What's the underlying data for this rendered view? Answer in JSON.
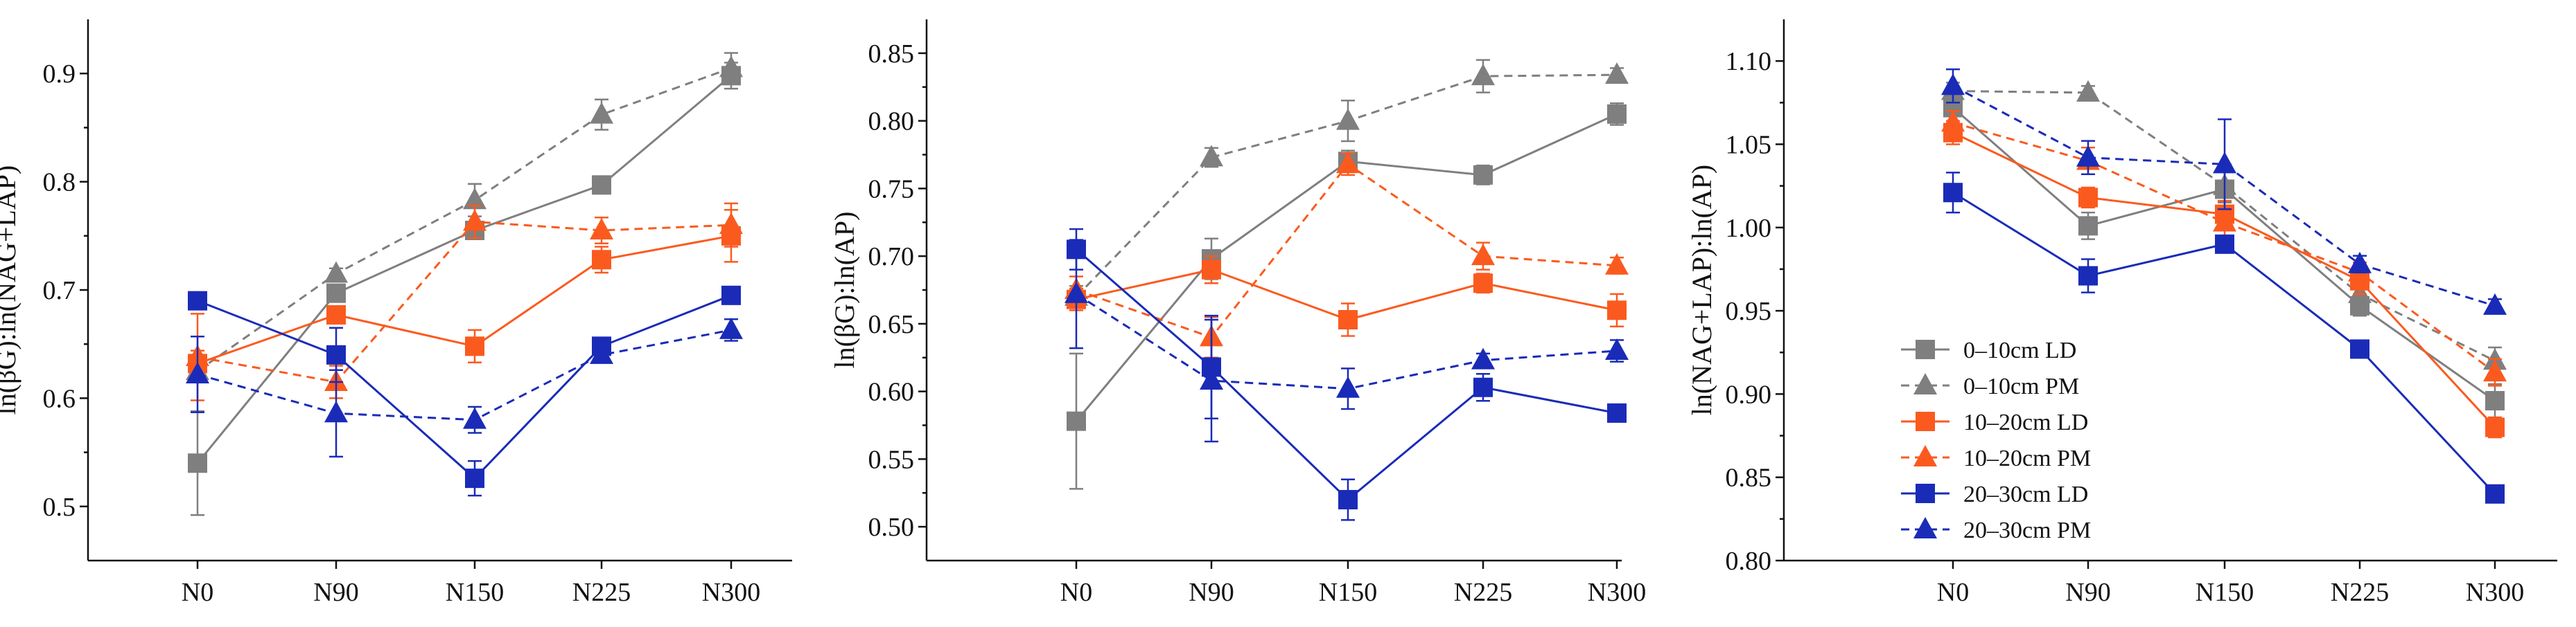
{
  "colors": {
    "gray": "#7f7f7f",
    "orange": "#fb5a1e",
    "blue": "#1a2bb8",
    "axis": "#111111"
  },
  "chart_data": [
    {
      "type": "line",
      "title": "",
      "xlabel": "",
      "ylabel": "ln(βG):ln(NAG+LAP)",
      "categories": [
        "N0",
        "N90",
        "N150",
        "N225",
        "N300"
      ],
      "ylim": [
        0.45,
        0.95
      ],
      "yticks": [
        0.5,
        0.6,
        0.7,
        0.8,
        0.9
      ],
      "ytick_labels": [
        "0.5",
        "0.6",
        "0.7",
        "0.8",
        "0.9"
      ],
      "series": [
        {
          "name": "0–10cm LD",
          "color": "gray",
          "marker": "square",
          "dashed": false,
          "values": [
            0.54,
            0.697,
            0.755,
            0.797,
            0.898
          ],
          "errors": [
            0.048,
            0.008,
            0.008,
            0.006,
            0.012
          ]
        },
        {
          "name": "0–10cm PM",
          "color": "gray",
          "marker": "triangle",
          "dashed": true,
          "values": [
            0.625,
            0.715,
            0.783,
            0.862,
            0.905
          ],
          "errors": [
            0.008,
            0.005,
            0.015,
            0.014,
            0.014
          ]
        },
        {
          "name": "10–20cm LD",
          "color": "orange",
          "marker": "square",
          "dashed": false,
          "values": [
            0.632,
            0.677,
            0.648,
            0.728,
            0.75
          ],
          "errors": [
            0.012,
            0.008,
            0.015,
            0.012,
            0.024
          ]
        },
        {
          "name": "10–20cm PM",
          "color": "orange",
          "marker": "triangle",
          "dashed": true,
          "values": [
            0.638,
            0.615,
            0.763,
            0.755,
            0.76
          ],
          "errors": [
            0.04,
            0.015,
            0.015,
            0.012,
            0.02
          ]
        },
        {
          "name": "20–30cm LD",
          "color": "blue",
          "marker": "square",
          "dashed": false,
          "values": [
            0.69,
            0.64,
            0.526,
            0.648,
            0.695
          ],
          "errors": [
            0.006,
            0.025,
            0.016,
            0.008,
            0.006
          ]
        },
        {
          "name": "20–30cm PM",
          "color": "blue",
          "marker": "triangle",
          "dashed": true,
          "values": [
            0.622,
            0.586,
            0.58,
            0.64,
            0.663
          ],
          "errors": [
            0.035,
            0.04,
            0.012,
            0.006,
            0.01
          ]
        }
      ]
    },
    {
      "type": "line",
      "title": "",
      "xlabel": "",
      "ylabel": "ln(βG):ln(AP)",
      "categories": [
        "N0",
        "N90",
        "N150",
        "N225",
        "N300"
      ],
      "ylim": [
        0.475,
        0.875
      ],
      "yticks": [
        0.5,
        0.55,
        0.6,
        0.65,
        0.7,
        0.75,
        0.8,
        0.85
      ],
      "ytick_labels": [
        "0.50",
        "0.55",
        "0.60",
        "0.65",
        "0.70",
        "0.75",
        "0.80",
        "0.85"
      ],
      "series": [
        {
          "name": "0–10cm LD",
          "color": "gray",
          "marker": "square",
          "dashed": false,
          "values": [
            0.578,
            0.698,
            0.77,
            0.76,
            0.805
          ],
          "errors": [
            0.05,
            0.015,
            0.008,
            0.007,
            0.008
          ]
        },
        {
          "name": "0–10cm PM",
          "color": "gray",
          "marker": "triangle",
          "dashed": true,
          "values": [
            0.67,
            0.773,
            0.8,
            0.833,
            0.834
          ],
          "errors": [
            0.008,
            0.007,
            0.015,
            0.012,
            0.005
          ]
        },
        {
          "name": "10–20cm LD",
          "color": "orange",
          "marker": "square",
          "dashed": false,
          "values": [
            0.668,
            0.69,
            0.653,
            0.68,
            0.66
          ],
          "errors": [
            0.008,
            0.01,
            0.012,
            0.007,
            0.012
          ]
        },
        {
          "name": "10–20cm PM",
          "color": "orange",
          "marker": "triangle",
          "dashed": true,
          "values": [
            0.675,
            0.64,
            0.768,
            0.7,
            0.693
          ],
          "errors": [
            0.01,
            0.015,
            0.008,
            0.01,
            0.006
          ]
        },
        {
          "name": "20–30cm LD",
          "color": "blue",
          "marker": "square",
          "dashed": false,
          "values": [
            0.705,
            0.618,
            0.52,
            0.603,
            0.584
          ],
          "errors": [
            0.015,
            0.038,
            0.015,
            0.01,
            0.005
          ]
        },
        {
          "name": "20–30cm PM",
          "color": "blue",
          "marker": "triangle",
          "dashed": true,
          "values": [
            0.672,
            0.608,
            0.602,
            0.623,
            0.63
          ],
          "errors": [
            0.04,
            0.045,
            0.015,
            0.005,
            0.008
          ]
        }
      ]
    },
    {
      "type": "line",
      "title": "",
      "xlabel": "",
      "ylabel": "ln(NAG+LAP):ln(AP)",
      "categories": [
        "N0",
        "N90",
        "N150",
        "N225",
        "N300"
      ],
      "ylim": [
        0.8,
        1.125
      ],
      "yticks": [
        0.8,
        0.85,
        0.9,
        0.95,
        1.0,
        1.05,
        1.1
      ],
      "ytick_labels": [
        "0.80",
        "0.85",
        "0.90",
        "0.95",
        "1.00",
        "1.05",
        "1.10"
      ],
      "legend": {
        "position": "lower-left"
      },
      "series": [
        {
          "name": "0–10cm LD",
          "color": "gray",
          "marker": "square",
          "dashed": false,
          "values": [
            1.072,
            1.001,
            1.023,
            0.953,
            0.896
          ],
          "errors": [
            0.005,
            0.008,
            0.015,
            0.006,
            0.01
          ]
        },
        {
          "name": "0–10cm PM",
          "color": "gray",
          "marker": "triangle",
          "dashed": true,
          "values": [
            1.082,
            1.081,
            1.025,
            0.96,
            0.92
          ],
          "errors": [
            0.005,
            0.004,
            0.01,
            0.006,
            0.008
          ]
        },
        {
          "name": "10–20cm LD",
          "color": "orange",
          "marker": "square",
          "dashed": false,
          "values": [
            1.057,
            1.018,
            1.008,
            0.968,
            0.88
          ],
          "errors": [
            0.007,
            0.006,
            0.008,
            0.008,
            0.006
          ]
        },
        {
          "name": "10–20cm PM",
          "color": "orange",
          "marker": "triangle",
          "dashed": true,
          "values": [
            1.063,
            1.04,
            1.003,
            0.973,
            0.913
          ],
          "errors": [
            0.007,
            0.008,
            0.008,
            0.006,
            0.008
          ]
        },
        {
          "name": "20–30cm LD",
          "color": "blue",
          "marker": "square",
          "dashed": false,
          "values": [
            1.021,
            0.971,
            0.99,
            0.927,
            0.84
          ],
          "errors": [
            0.012,
            0.01,
            0.005,
            0.004,
            0.004
          ]
        },
        {
          "name": "20–30cm PM",
          "color": "blue",
          "marker": "triangle",
          "dashed": true,
          "values": [
            1.085,
            1.042,
            1.038,
            0.978,
            0.953
          ],
          "errors": [
            0.01,
            0.01,
            0.027,
            0.005,
            0.004
          ]
        }
      ]
    }
  ]
}
